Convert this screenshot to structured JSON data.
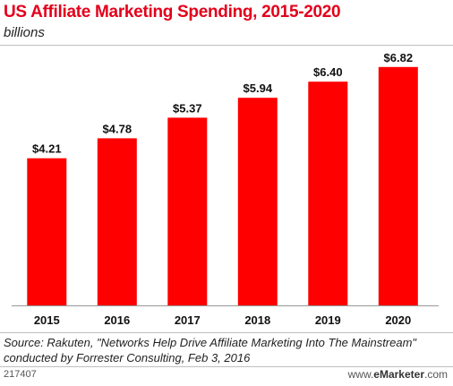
{
  "chart_data": {
    "type": "bar",
    "title": "US Affiliate Marketing Spending, 2015-2020",
    "subtitle": "billions",
    "categories": [
      "2015",
      "2016",
      "2017",
      "2018",
      "2019",
      "2020"
    ],
    "values": [
      4.21,
      4.78,
      5.37,
      5.94,
      6.4,
      6.82
    ],
    "value_labels": [
      "$4.21",
      "$4.78",
      "$5.37",
      "$5.94",
      "$6.40",
      "$6.82"
    ],
    "ylim": [
      0,
      7.2
    ],
    "bar_color": "#ff0000",
    "grid": false
  },
  "footer": {
    "source": "Source: Rakuten, \"Networks Help Drive Affiliate Marketing Into The Mainstream\" conducted by Forrester Consulting, Feb 3, 2016",
    "chart_id": "217407",
    "brand_prefix": "www.",
    "brand_name": "eMarketer",
    "brand_suffix": ".com"
  }
}
